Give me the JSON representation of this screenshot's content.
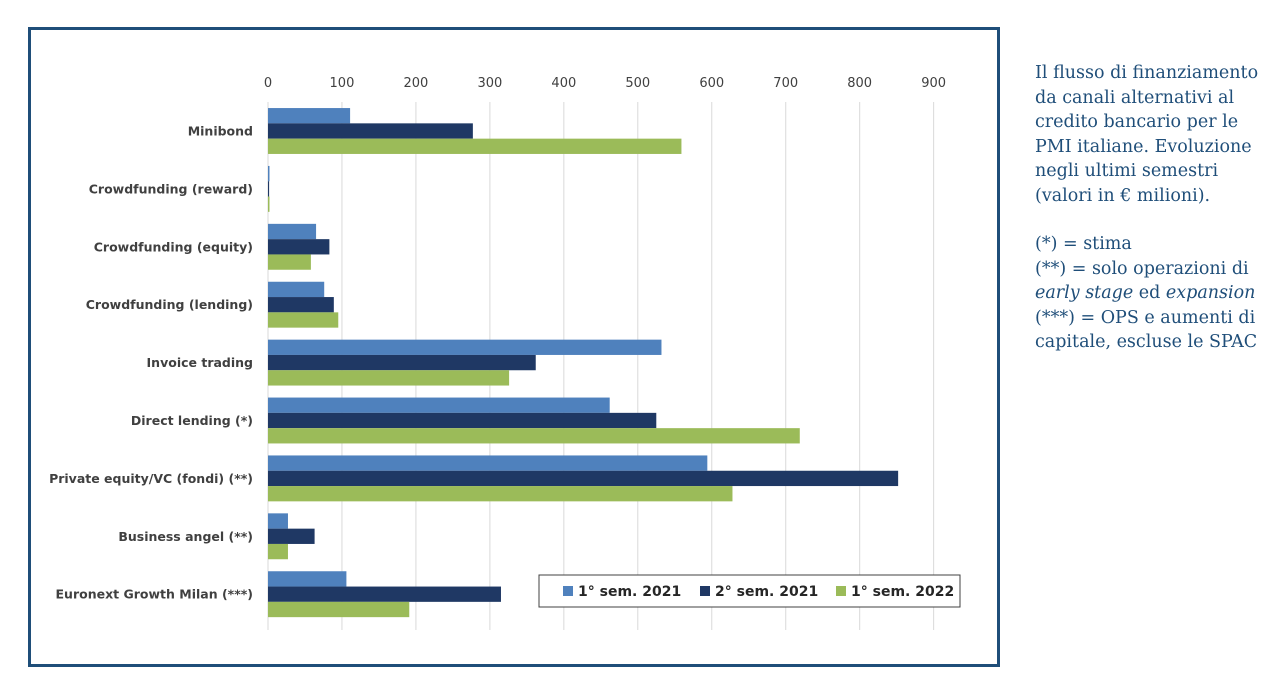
{
  "chart_data": {
    "type": "bar",
    "orientation": "horizontal",
    "categories": [
      "Minibond",
      "Crowdfunding (reward)",
      "Crowdfunding (equity)",
      "Crowdfunding (lending)",
      "Invoice trading",
      "Direct lending (*)",
      "Private equity/VC (fondi)  (**)",
      "Business angel (**)",
      "Euronext Growth Milan (***)"
    ],
    "series": [
      {
        "name": "1° sem. 2021",
        "color": "#4f81bd",
        "values": [
          111,
          2,
          65,
          76,
          532,
          462,
          594,
          27,
          106
        ]
      },
      {
        "name": "2° sem. 2021",
        "color": "#1f3864",
        "values": [
          277,
          1.5,
          83,
          89,
          362,
          525,
          852,
          63,
          315
        ]
      },
      {
        "name": "1° sem. 2022",
        "color": "#9bbb59",
        "values": [
          559,
          2,
          58,
          95,
          326,
          719,
          628,
          27,
          191
        ]
      }
    ],
    "x_ticks": [
      "0",
      "100",
      "200",
      "300",
      "400",
      "500",
      "600",
      "700",
      "800",
      "900"
    ],
    "xlim": [
      0,
      900
    ],
    "x_axis_position": "top",
    "grid": true,
    "legend_position": "bottom-right"
  },
  "side_note": {
    "description_lines": [
      "Il flusso di finanziamento",
      "da canali alternativi al",
      "credito bancario per le",
      "PMI italiane. Evoluzione",
      "negli ultimi semestri",
      "(valori in € milioni)."
    ],
    "note1": "(*) = stima",
    "note2_prefix": "(**) = solo operazioni di",
    "note2_italic1": "early stage",
    "note2_mid": " ed ",
    "note2_italic2": "expansion",
    "note3_line1": "(***) = OPS e aumenti di",
    "note3_line2": "capitale, escluse le SPAC"
  }
}
